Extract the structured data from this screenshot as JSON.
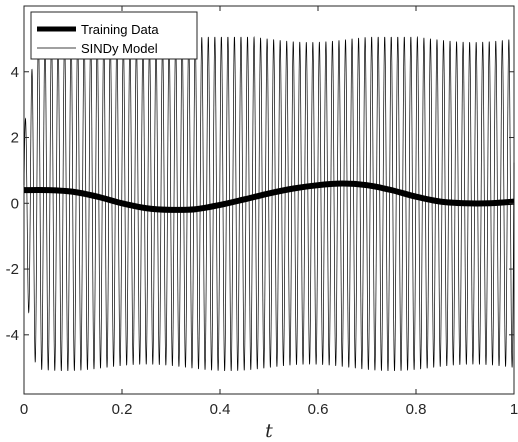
{
  "chart_data": {
    "type": "line",
    "title": "",
    "xlabel": "t",
    "ylabel": "",
    "xlim": [
      0,
      1
    ],
    "ylim": [
      -5.8,
      6
    ],
    "xticks": [
      0,
      0.2,
      0.4,
      0.6,
      0.8,
      1
    ],
    "xtick_labels": [
      "0",
      "0.2",
      "0.4",
      "0.6",
      "0.8",
      "1"
    ],
    "yticks": [
      -4,
      -2,
      0,
      2,
      4
    ],
    "ytick_labels": [
      "-4",
      "-2",
      "0",
      "2",
      "4"
    ],
    "grid": false,
    "legend_position": "top-left",
    "series": [
      {
        "name": "Training Data",
        "style": "thick",
        "color": "#000000",
        "x": [
          0,
          0.05,
          0.1,
          0.15,
          0.2,
          0.25,
          0.3,
          0.35,
          0.4,
          0.45,
          0.5,
          0.55,
          0.6,
          0.65,
          0.7,
          0.75,
          0.8,
          0.85,
          0.9,
          0.95,
          1.0
        ],
        "y": [
          0.4,
          0.4,
          0.35,
          0.2,
          0.0,
          -0.15,
          -0.2,
          -0.18,
          -0.05,
          0.12,
          0.3,
          0.45,
          0.55,
          0.6,
          0.55,
          0.4,
          0.2,
          0.05,
          0.0,
          0.0,
          0.05
        ]
      },
      {
        "name": "SINDy Model",
        "style": "thin",
        "color": "#000000",
        "amplitude": 5.0,
        "cycles": 75,
        "x_start": 0,
        "x_end": 1,
        "y_min": -5.1,
        "y_max": 5.05
      }
    ]
  }
}
